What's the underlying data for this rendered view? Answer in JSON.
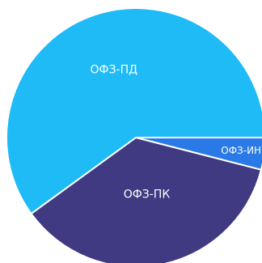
{
  "chart_data": {
    "type": "pie",
    "title": "",
    "categories": [
      "ОФЗ-ИН",
      "ОФЗ-ПК",
      "ОФЗ-ПД"
    ],
    "values": [
      4,
      36,
      60
    ],
    "colors": [
      "#2979E6",
      "#3F3A82",
      "#1EBBF7"
    ],
    "legend": "none",
    "labels_inside": true
  }
}
